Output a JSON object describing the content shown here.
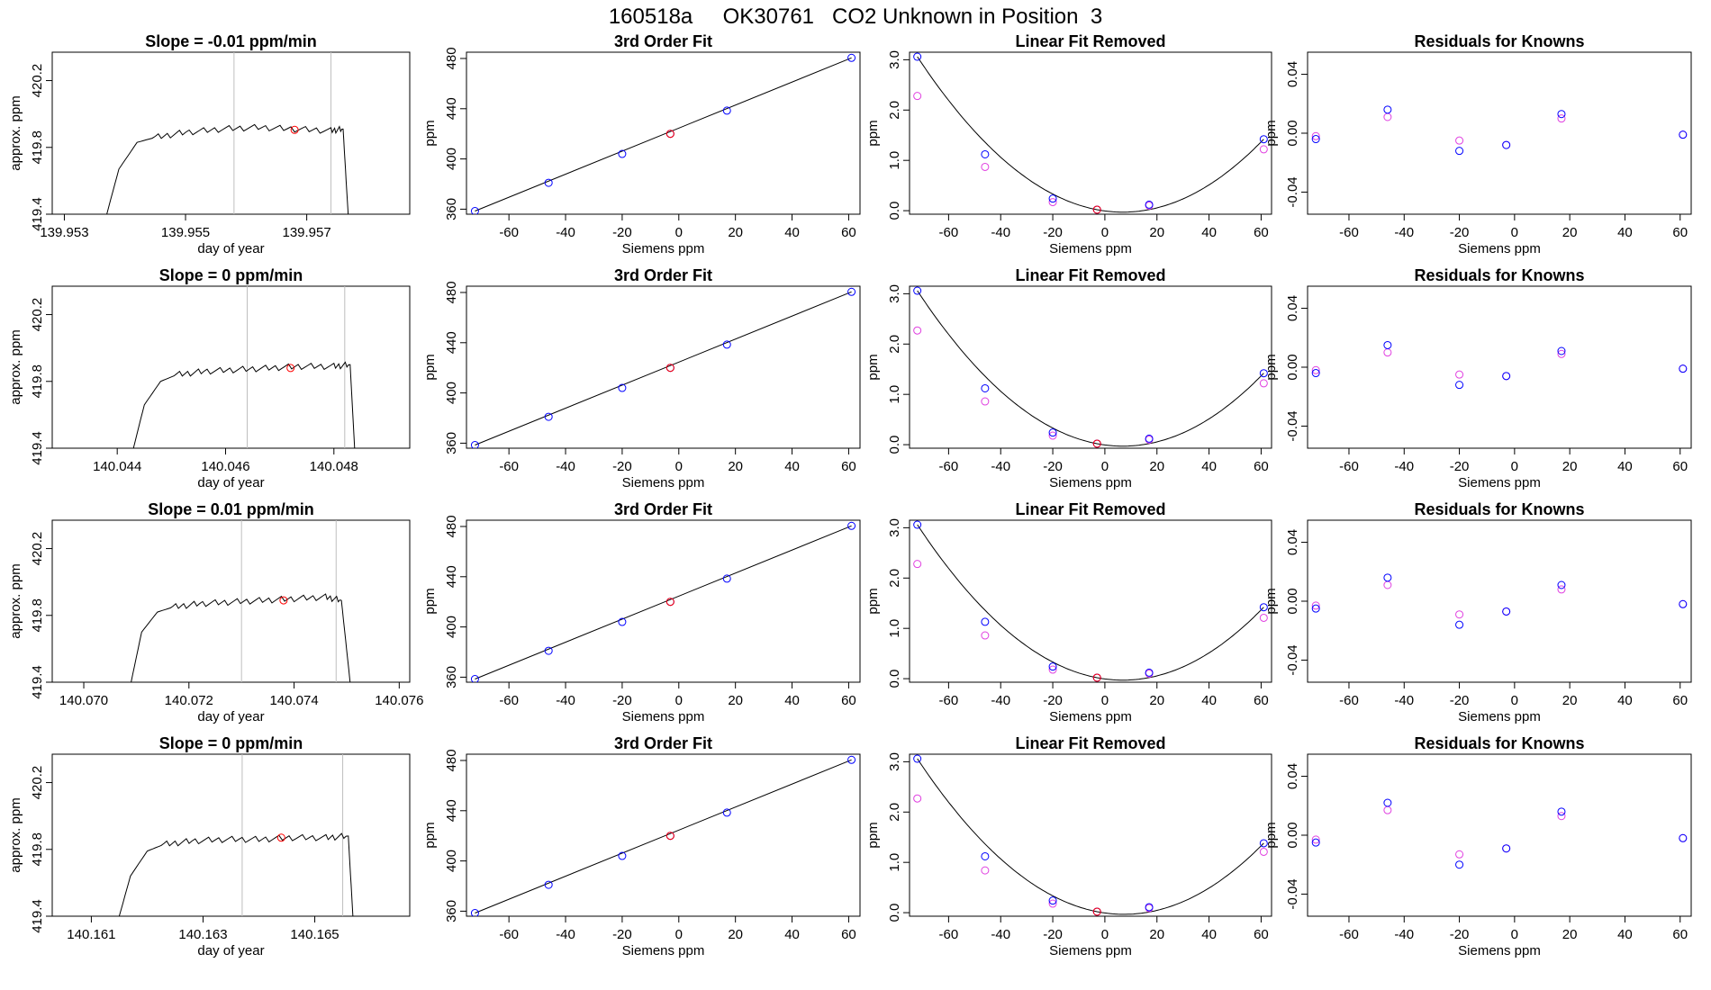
{
  "page": {
    "title": "160518a     OK30761   CO2 Unknown in Position  3"
  },
  "colors": {
    "line": "#000000",
    "marker_blue": "#0000ff",
    "marker_magenta": "#e040e0",
    "marker_red": "#ff0000",
    "guide_gray": "#bebebe"
  },
  "chart_data": [
    {
      "type": "line",
      "panel": "time-series",
      "title": "Slope =  -0.01  ppm/min",
      "xlabel": "day of year",
      "ylabel": "approx. ppm",
      "xlim": [
        139.9528,
        139.9587
      ],
      "ylim": [
        419.4,
        420.37
      ],
      "xticks": [
        139.953,
        139.955,
        139.957
      ],
      "xtick_labels": [
        "139.953",
        "139.955",
        "139.957"
      ],
      "yticks": [
        419.4,
        419.8,
        420.2
      ],
      "ytick_labels": [
        "419.4",
        "419.8",
        "420.2"
      ],
      "vlines": [
        139.9558,
        139.9574
      ],
      "marker": [
        139.9568,
        419.905
      ],
      "x": [
        139.9537,
        139.9539,
        139.9542,
        139.9545,
        139.955,
        139.9556,
        139.9562,
        139.9568,
        139.9574,
        139.9576,
        139.9577
      ],
      "y": [
        419.4,
        419.67,
        419.83,
        419.86,
        419.89,
        419.91,
        419.92,
        419.91,
        419.9,
        419.91,
        419.3
      ]
    },
    {
      "type": "scatter",
      "panel": "fit",
      "title": "3rd Order Fit",
      "xlabel": "Siemens ppm",
      "ylabel": "ppm",
      "xlim": [
        -75,
        64
      ],
      "ylim": [
        356,
        485
      ],
      "xticks": [
        -60,
        -40,
        -20,
        0,
        20,
        40,
        60
      ],
      "yticks": [
        360,
        400,
        440,
        480
      ],
      "x": [
        -72,
        -46,
        -20,
        -3,
        17,
        61
      ],
      "y": [
        358.5,
        381,
        404,
        420,
        438.5,
        480.5
      ],
      "marker_x": -3,
      "marker_y": 420
    },
    {
      "type": "scatter",
      "panel": "linear-removed",
      "title": "Linear Fit Removed",
      "xlabel": "Siemens ppm",
      "ylabel": "ppm",
      "xlim": [
        -75,
        64
      ],
      "ylim": [
        -0.07,
        3.15
      ],
      "xticks": [
        -60,
        -40,
        -20,
        0,
        20,
        40,
        60
      ],
      "yticks": [
        0.0,
        1.0,
        2.0,
        3.0
      ],
      "ytick_labels": [
        "0.0",
        "1.0",
        "2.0",
        "3.0"
      ],
      "x": [
        -72,
        -46,
        -20,
        -3,
        17,
        61
      ],
      "series": [
        {
          "values": [
            3.06,
            1.12,
            0.24,
            0.02,
            0.12,
            1.42
          ],
          "color": "blue"
        },
        {
          "values": [
            2.28,
            0.87,
            0.17,
            0.02,
            0.1,
            1.22
          ],
          "color": "magenta"
        }
      ],
      "marker_x": -3,
      "marker_y": 0.02
    },
    {
      "type": "scatter",
      "panel": "residuals",
      "title": "Residuals for Knowns",
      "xlabel": "Siemens ppm",
      "ylabel": "ppm",
      "xlim": [
        -75,
        64
      ],
      "ylim": [
        -0.055,
        0.055
      ],
      "xticks": [
        -60,
        -40,
        -20,
        0,
        20,
        40,
        60
      ],
      "yticks": [
        -0.04,
        0.0,
        0.04
      ],
      "ytick_labels": [
        "-0.04",
        "0.00",
        "0.04"
      ],
      "x": [
        -72,
        -46,
        -20,
        -3,
        17,
        61
      ],
      "series": [
        {
          "values": [
            -0.004,
            0.016,
            -0.012,
            -0.008,
            0.013,
            -0.001
          ],
          "color": "blue"
        },
        {
          "values": [
            -0.002,
            0.011,
            -0.005,
            -0.008,
            0.01,
            -0.001
          ],
          "color": "magenta"
        }
      ]
    },
    {
      "type": "line",
      "panel": "time-series",
      "title": "Slope =  0  ppm/min",
      "xlabel": "day of year",
      "ylabel": "approx. ppm",
      "xlim": [
        140.0428,
        140.0494
      ],
      "ylim": [
        419.4,
        420.37
      ],
      "xticks": [
        140.044,
        140.046,
        140.048
      ],
      "xtick_labels": [
        "140.044",
        "140.046",
        "140.048"
      ],
      "yticks": [
        419.4,
        419.8,
        420.2
      ],
      "ytick_labels": [
        "419.4",
        "419.8",
        "420.2"
      ],
      "vlines": [
        140.0464,
        140.0482
      ],
      "marker": [
        140.0472,
        419.88
      ],
      "x": [
        140.0443,
        140.0445,
        140.0448,
        140.0451,
        140.0456,
        140.0462,
        140.0468,
        140.0474,
        140.048,
        140.0483,
        140.0484
      ],
      "y": [
        419.4,
        419.66,
        419.8,
        419.84,
        419.86,
        419.87,
        419.88,
        419.89,
        419.89,
        419.9,
        419.3
      ]
    },
    {
      "type": "scatter",
      "panel": "fit",
      "title": "3rd Order Fit",
      "xlabel": "Siemens ppm",
      "ylabel": "ppm",
      "xlim": [
        -75,
        64
      ],
      "ylim": [
        356,
        485
      ],
      "xticks": [
        -60,
        -40,
        -20,
        0,
        20,
        40,
        60
      ],
      "yticks": [
        360,
        400,
        440,
        480
      ],
      "x": [
        -72,
        -46,
        -20,
        -3,
        17,
        61
      ],
      "y": [
        358.5,
        381,
        404,
        420,
        438.5,
        480.5
      ],
      "marker_x": -3,
      "marker_y": 420
    },
    {
      "type": "scatter",
      "panel": "linear-removed",
      "title": "Linear Fit Removed",
      "xlabel": "Siemens ppm",
      "ylabel": "ppm",
      "xlim": [
        -75,
        64
      ],
      "ylim": [
        -0.07,
        3.15
      ],
      "xticks": [
        -60,
        -40,
        -20,
        0,
        20,
        40,
        60
      ],
      "yticks": [
        0.0,
        1.0,
        2.0,
        3.0
      ],
      "ytick_labels": [
        "0.0",
        "1.0",
        "2.0",
        "3.0"
      ],
      "x": [
        -72,
        -46,
        -20,
        -3,
        17,
        61
      ],
      "series": [
        {
          "values": [
            3.06,
            1.12,
            0.24,
            0.02,
            0.12,
            1.42
          ],
          "color": "blue"
        },
        {
          "values": [
            2.27,
            0.86,
            0.18,
            0.02,
            0.1,
            1.22
          ],
          "color": "magenta"
        }
      ],
      "marker_x": -3,
      "marker_y": 0.02
    },
    {
      "type": "scatter",
      "panel": "residuals",
      "title": "Residuals for Knowns",
      "xlabel": "Siemens ppm",
      "ylabel": "ppm",
      "xlim": [
        -75,
        64
      ],
      "ylim": [
        -0.055,
        0.055
      ],
      "xticks": [
        -60,
        -40,
        -20,
        0,
        20,
        40,
        60
      ],
      "yticks": [
        -0.04,
        0.0,
        0.04
      ],
      "ytick_labels": [
        "-0.04",
        "0.00",
        "0.04"
      ],
      "x": [
        -72,
        -46,
        -20,
        -3,
        17,
        61
      ],
      "series": [
        {
          "values": [
            -0.004,
            0.015,
            -0.012,
            -0.006,
            0.011,
            -0.001
          ],
          "color": "blue"
        },
        {
          "values": [
            -0.002,
            0.01,
            -0.005,
            -0.006,
            0.009,
            -0.001
          ],
          "color": "magenta"
        }
      ]
    },
    {
      "type": "line",
      "panel": "time-series",
      "title": "Slope =  0.01  ppm/min",
      "xlabel": "day of year",
      "ylabel": "approx. ppm",
      "xlim": [
        140.0694,
        140.0762
      ],
      "ylim": [
        419.4,
        420.37
      ],
      "xticks": [
        140.07,
        140.072,
        140.074,
        140.076
      ],
      "xtick_labels": [
        "140.070",
        "140.072",
        "140.074",
        "140.076"
      ],
      "yticks": [
        419.4,
        419.8,
        420.2
      ],
      "ytick_labels": [
        "419.4",
        "419.8",
        "420.2"
      ],
      "vlines": [
        140.073,
        140.0748
      ],
      "marker": [
        140.0738,
        419.89
      ],
      "x": [
        140.0709,
        140.0711,
        140.0714,
        140.0717,
        140.0722,
        140.0728,
        140.0734,
        140.074,
        140.0746,
        140.0749,
        140.0751
      ],
      "y": [
        419.4,
        419.7,
        419.82,
        419.85,
        419.87,
        419.88,
        419.89,
        419.9,
        419.91,
        419.89,
        419.3
      ]
    },
    {
      "type": "scatter",
      "panel": "fit",
      "title": "3rd Order Fit",
      "xlabel": "Siemens ppm",
      "ylabel": "ppm",
      "xlim": [
        -75,
        64
      ],
      "ylim": [
        356,
        485
      ],
      "xticks": [
        -60,
        -40,
        -20,
        0,
        20,
        40,
        60
      ],
      "yticks": [
        360,
        400,
        440,
        480
      ],
      "x": [
        -72,
        -46,
        -20,
        -3,
        17,
        61
      ],
      "y": [
        358.5,
        381,
        404,
        420,
        438.5,
        480.5
      ],
      "marker_x": -3,
      "marker_y": 420
    },
    {
      "type": "scatter",
      "panel": "linear-removed",
      "title": "Linear Fit Removed",
      "xlabel": "Siemens ppm",
      "ylabel": "ppm",
      "xlim": [
        -75,
        64
      ],
      "ylim": [
        -0.07,
        3.15
      ],
      "xticks": [
        -60,
        -40,
        -20,
        0,
        20,
        40,
        60
      ],
      "yticks": [
        0.0,
        1.0,
        2.0,
        3.0
      ],
      "ytick_labels": [
        "0.0",
        "1.0",
        "2.0",
        "3.0"
      ],
      "x": [
        -72,
        -46,
        -20,
        -3,
        17,
        61
      ],
      "series": [
        {
          "values": [
            3.06,
            1.13,
            0.24,
            0.02,
            0.12,
            1.42
          ],
          "color": "blue"
        },
        {
          "values": [
            2.28,
            0.86,
            0.18,
            0.02,
            0.1,
            1.21
          ],
          "color": "magenta"
        }
      ],
      "marker_x": -3,
      "marker_y": 0.02
    },
    {
      "type": "scatter",
      "panel": "residuals",
      "title": "Residuals for Knowns",
      "xlabel": "Siemens ppm",
      "ylabel": "ppm",
      "xlim": [
        -75,
        64
      ],
      "ylim": [
        -0.055,
        0.055
      ],
      "xticks": [
        -60,
        -40,
        -20,
        0,
        20,
        40,
        60
      ],
      "yticks": [
        -0.04,
        0.0,
        0.04
      ],
      "ytick_labels": [
        "-0.04",
        "0.00",
        "0.04"
      ],
      "x": [
        -72,
        -46,
        -20,
        -3,
        17,
        61
      ],
      "series": [
        {
          "values": [
            -0.005,
            0.016,
            -0.016,
            -0.007,
            0.011,
            -0.002
          ],
          "color": "blue"
        },
        {
          "values": [
            -0.003,
            0.011,
            -0.009,
            -0.007,
            0.008,
            -0.002
          ],
          "color": "magenta"
        }
      ]
    },
    {
      "type": "line",
      "panel": "time-series",
      "title": "Slope =  0  ppm/min",
      "xlabel": "day of year",
      "ylabel": "approx. ppm",
      "xlim": [
        140.1603,
        140.1667
      ],
      "ylim": [
        419.4,
        420.37
      ],
      "xticks": [
        140.161,
        140.163,
        140.165
      ],
      "xtick_labels": [
        "140.161",
        "140.163",
        "140.165"
      ],
      "yticks": [
        419.4,
        419.8,
        420.2
      ],
      "ytick_labels": [
        "419.4",
        "419.8",
        "420.2"
      ],
      "vlines": [
        140.1637,
        140.1655
      ],
      "marker": [
        140.1644,
        419.87
      ],
      "x": [
        140.1615,
        140.1617,
        140.162,
        140.1623,
        140.1628,
        140.1634,
        140.164,
        140.1646,
        140.1652,
        140.1656,
        140.1657
      ],
      "y": [
        419.4,
        419.64,
        419.79,
        419.83,
        419.85,
        419.86,
        419.86,
        419.87,
        419.87,
        419.88,
        419.3
      ]
    },
    {
      "type": "scatter",
      "panel": "fit",
      "title": "3rd Order Fit",
      "xlabel": "Siemens ppm",
      "ylabel": "ppm",
      "xlim": [
        -75,
        64
      ],
      "ylim": [
        356,
        485
      ],
      "xticks": [
        -60,
        -40,
        -20,
        0,
        20,
        40,
        60
      ],
      "yticks": [
        360,
        400,
        440,
        480
      ],
      "x": [
        -72,
        -46,
        -20,
        -3,
        17,
        61
      ],
      "y": [
        358.5,
        381,
        404,
        420,
        438.5,
        480.5
      ],
      "marker_x": -3,
      "marker_y": 420
    },
    {
      "type": "scatter",
      "panel": "linear-removed",
      "title": "Linear Fit Removed",
      "xlabel": "Siemens ppm",
      "ylabel": "ppm",
      "xlim": [
        -75,
        64
      ],
      "ylim": [
        -0.07,
        3.15
      ],
      "xticks": [
        -60,
        -40,
        -20,
        0,
        20,
        40,
        60
      ],
      "yticks": [
        0.0,
        1.0,
        2.0,
        3.0
      ],
      "ytick_labels": [
        "0.0",
        "1.0",
        "2.0",
        "3.0"
      ],
      "x": [
        -72,
        -46,
        -20,
        -3,
        17,
        61
      ],
      "series": [
        {
          "values": [
            3.06,
            1.12,
            0.24,
            0.02,
            0.11,
            1.38
          ],
          "color": "blue"
        },
        {
          "values": [
            2.27,
            0.84,
            0.18,
            0.02,
            0.09,
            1.21
          ],
          "color": "magenta"
        }
      ],
      "marker_x": -3,
      "marker_y": 0.02
    },
    {
      "type": "scatter",
      "panel": "residuals",
      "title": "Residuals for Knowns",
      "xlabel": "Siemens ppm",
      "ylabel": "ppm",
      "xlim": [
        -75,
        64
      ],
      "ylim": [
        -0.055,
        0.055
      ],
      "xticks": [
        -60,
        -40,
        -20,
        0,
        20,
        40,
        60
      ],
      "yticks": [
        -0.04,
        0.0,
        0.04
      ],
      "ytick_labels": [
        "-0.04",
        "0.00",
        "0.04"
      ],
      "x": [
        -72,
        -46,
        -20,
        -3,
        17,
        61
      ],
      "series": [
        {
          "values": [
            -0.005,
            0.022,
            -0.02,
            -0.009,
            0.016,
            -0.002
          ],
          "color": "blue"
        },
        {
          "values": [
            -0.003,
            0.017,
            -0.013,
            -0.009,
            0.013,
            -0.002
          ],
          "color": "magenta"
        }
      ]
    }
  ]
}
